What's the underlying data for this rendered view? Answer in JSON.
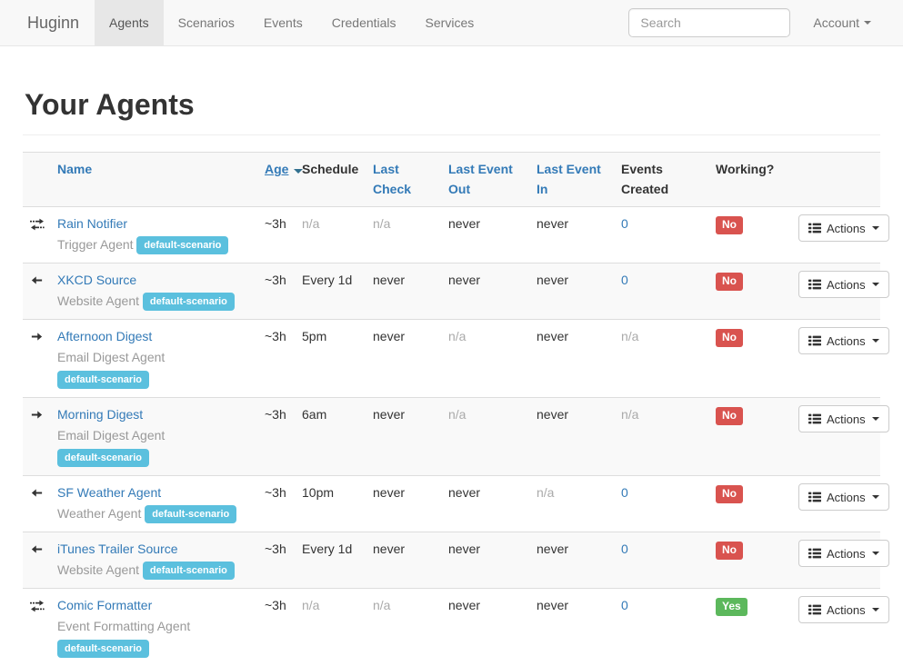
{
  "colors": {
    "link": "#337ab7",
    "badge_info": "#5bc0de",
    "label_danger": "#d9534f",
    "label_success": "#5cb85c",
    "navbar_bg": "#f8f8f8"
  },
  "navbar": {
    "brand": "Huginn",
    "items": [
      {
        "label": "Agents",
        "active": true
      },
      {
        "label": "Scenarios",
        "active": false
      },
      {
        "label": "Events",
        "active": false
      },
      {
        "label": "Credentials",
        "active": false
      },
      {
        "label": "Services",
        "active": false
      }
    ],
    "search": {
      "placeholder": "Search",
      "value": ""
    },
    "account": {
      "label": "Account"
    }
  },
  "page": {
    "title": "Your Agents"
  },
  "table": {
    "headers": {
      "name": "Name",
      "age": "Age",
      "schedule": "Schedule",
      "last_check": "Last Check",
      "last_event_out": "Last Event Out",
      "last_event_in": "Last Event In",
      "events_created": "Events Created",
      "working": "Working?"
    },
    "actions_label": "Actions",
    "rows": [
      {
        "icon": "transfer",
        "name": "Rain Notifier",
        "type": "Trigger Agent",
        "badge": "default-scenario",
        "age": "~3h",
        "schedule": {
          "text": "n/a",
          "muted": true
        },
        "last_check": {
          "text": "n/a",
          "muted": true
        },
        "last_event_out": {
          "text": "never",
          "muted": false
        },
        "last_event_in": {
          "text": "never",
          "muted": false
        },
        "events_created": {
          "text": "0",
          "link": true
        },
        "working": {
          "text": "No",
          "status": "danger"
        }
      },
      {
        "icon": "arrow-left",
        "name": "XKCD Source",
        "type": "Website Agent",
        "badge": "default-scenario",
        "age": "~3h",
        "schedule": {
          "text": "Every 1d",
          "muted": false
        },
        "last_check": {
          "text": "never",
          "muted": false
        },
        "last_event_out": {
          "text": "never",
          "muted": false
        },
        "last_event_in": {
          "text": "never",
          "muted": false
        },
        "events_created": {
          "text": "0",
          "link": true
        },
        "working": {
          "text": "No",
          "status": "danger"
        }
      },
      {
        "icon": "arrow-right",
        "name": "Afternoon Digest",
        "type": "Email Digest Agent",
        "badge": "default-scenario",
        "age": "~3h",
        "schedule": {
          "text": "5pm",
          "muted": false
        },
        "last_check": {
          "text": "never",
          "muted": false
        },
        "last_event_out": {
          "text": "n/a",
          "muted": true
        },
        "last_event_in": {
          "text": "never",
          "muted": false
        },
        "events_created": {
          "text": "n/a",
          "link": false,
          "muted": true
        },
        "working": {
          "text": "No",
          "status": "danger"
        }
      },
      {
        "icon": "arrow-right",
        "name": "Morning Digest",
        "type": "Email Digest Agent",
        "badge": "default-scenario",
        "age": "~3h",
        "schedule": {
          "text": "6am",
          "muted": false
        },
        "last_check": {
          "text": "never",
          "muted": false
        },
        "last_event_out": {
          "text": "n/a",
          "muted": true
        },
        "last_event_in": {
          "text": "never",
          "muted": false
        },
        "events_created": {
          "text": "n/a",
          "link": false,
          "muted": true
        },
        "working": {
          "text": "No",
          "status": "danger"
        }
      },
      {
        "icon": "arrow-left",
        "name": "SF Weather Agent",
        "type": "Weather Agent",
        "badge": "default-scenario",
        "age": "~3h",
        "schedule": {
          "text": "10pm",
          "muted": false
        },
        "last_check": {
          "text": "never",
          "muted": false
        },
        "last_event_out": {
          "text": "never",
          "muted": false
        },
        "last_event_in": {
          "text": "n/a",
          "muted": true
        },
        "events_created": {
          "text": "0",
          "link": true
        },
        "working": {
          "text": "No",
          "status": "danger"
        }
      },
      {
        "icon": "arrow-left",
        "name": "iTunes Trailer Source",
        "type": "Website Agent",
        "badge": "default-scenario",
        "age": "~3h",
        "schedule": {
          "text": "Every 1d",
          "muted": false
        },
        "last_check": {
          "text": "never",
          "muted": false
        },
        "last_event_out": {
          "text": "never",
          "muted": false
        },
        "last_event_in": {
          "text": "never",
          "muted": false
        },
        "events_created": {
          "text": "0",
          "link": true
        },
        "working": {
          "text": "No",
          "status": "danger"
        }
      },
      {
        "icon": "transfer",
        "name": "Comic Formatter",
        "type": "Event Formatting Agent",
        "badge": "default-scenario",
        "age": "~3h",
        "schedule": {
          "text": "n/a",
          "muted": true
        },
        "last_check": {
          "text": "n/a",
          "muted": true
        },
        "last_event_out": {
          "text": "never",
          "muted": false
        },
        "last_event_in": {
          "text": "never",
          "muted": false
        },
        "events_created": {
          "text": "0",
          "link": true
        },
        "working": {
          "text": "Yes",
          "status": "success"
        }
      }
    ]
  }
}
